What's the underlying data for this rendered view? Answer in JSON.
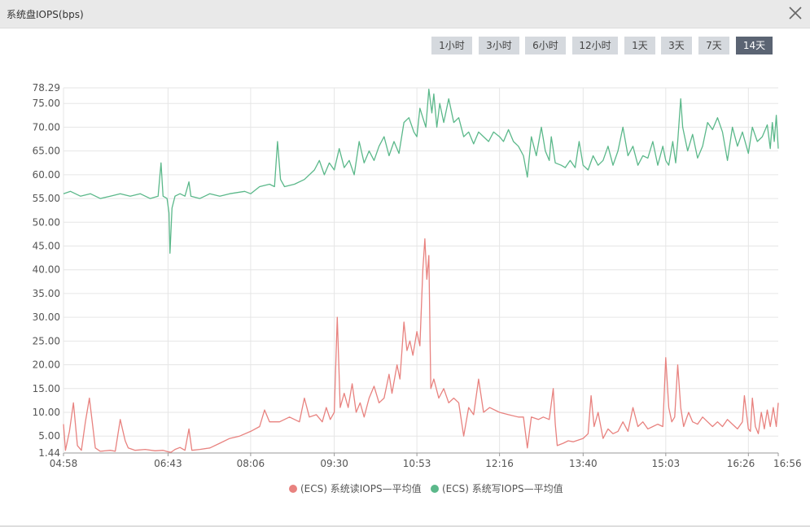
{
  "dialog": {
    "title": "系统盘IOPS(bps)",
    "close_icon": "close-icon"
  },
  "time_ranges": [
    {
      "label": "1小时",
      "active": false
    },
    {
      "label": "3小时",
      "active": false
    },
    {
      "label": "6小时",
      "active": false
    },
    {
      "label": "12小时",
      "active": false
    },
    {
      "label": "1天",
      "active": false
    },
    {
      "label": "3天",
      "active": false
    },
    {
      "label": "7天",
      "active": false
    },
    {
      "label": "14天",
      "active": true
    }
  ],
  "chart_data": {
    "type": "line",
    "title": "",
    "xlabel": "",
    "ylabel": "",
    "grid": true,
    "legend_placement": "bottom-center",
    "ylim": [
      1.44,
      78.29
    ],
    "x_range": [
      "04:58",
      "16:56"
    ],
    "x_tick_labels": [
      "04:58",
      "06:43",
      "08:06",
      "09:30",
      "10:53",
      "12:16",
      "13:40",
      "15:03",
      "16:26",
      "16:56"
    ],
    "y_tick_labels": [
      "1.44",
      "5.00",
      "10.00",
      "15.00",
      "20.00",
      "25.00",
      "30.00",
      "35.00",
      "40.00",
      "45.00",
      "50.00",
      "55.00",
      "60.00",
      "65.00",
      "70.00",
      "75.00",
      "78.29"
    ],
    "series": [
      {
        "name": "(ECS) 系统读IOPS—平均值",
        "color": "#e8827f",
        "points": [
          [
            "04:58",
            7.5
          ],
          [
            "05:00",
            2.0
          ],
          [
            "05:04",
            6.0
          ],
          [
            "05:08",
            12.0
          ],
          [
            "05:12",
            3.0
          ],
          [
            "05:16",
            2.0
          ],
          [
            "05:20",
            8.0
          ],
          [
            "05:24",
            13.0
          ],
          [
            "05:28",
            6.0
          ],
          [
            "05:30",
            2.5
          ],
          [
            "05:35",
            1.8
          ],
          [
            "05:45",
            2.0
          ],
          [
            "05:50",
            1.8
          ],
          [
            "05:55",
            8.5
          ],
          [
            "06:00",
            4.0
          ],
          [
            "06:03",
            2.5
          ],
          [
            "06:10",
            2.0
          ],
          [
            "06:20",
            2.2
          ],
          [
            "06:30",
            1.9
          ],
          [
            "06:38",
            2.0
          ],
          [
            "06:43",
            1.7
          ],
          [
            "06:46",
            1.6
          ],
          [
            "06:50",
            2.2
          ],
          [
            "06:55",
            2.6
          ],
          [
            "07:00",
            2.0
          ],
          [
            "07:04",
            6.5
          ],
          [
            "07:07",
            2.0
          ],
          [
            "07:15",
            2.2
          ],
          [
            "07:25",
            2.5
          ],
          [
            "07:35",
            3.5
          ],
          [
            "07:45",
            4.5
          ],
          [
            "07:55",
            5.0
          ],
          [
            "08:06",
            6.0
          ],
          [
            "08:15",
            7.0
          ],
          [
            "08:20",
            10.5
          ],
          [
            "08:25",
            8.0
          ],
          [
            "08:35",
            8.0
          ],
          [
            "08:45",
            9.0
          ],
          [
            "08:55",
            8.0
          ],
          [
            "09:00",
            13.0
          ],
          [
            "09:05",
            9.0
          ],
          [
            "09:12",
            9.5
          ],
          [
            "09:18",
            8.0
          ],
          [
            "09:22",
            11.0
          ],
          [
            "09:26",
            8.5
          ],
          [
            "09:30",
            10.0
          ],
          [
            "09:33",
            30.0
          ],
          [
            "09:36",
            11.0
          ],
          [
            "09:40",
            14.0
          ],
          [
            "09:44",
            11.0
          ],
          [
            "09:48",
            16.0
          ],
          [
            "09:52",
            10.0
          ],
          [
            "09:56",
            12.0
          ],
          [
            "10:00",
            9.0
          ],
          [
            "10:05",
            13.0
          ],
          [
            "10:10",
            15.5
          ],
          [
            "10:15",
            12.0
          ],
          [
            "10:20",
            13.0
          ],
          [
            "10:25",
            18.0
          ],
          [
            "10:28",
            14.0
          ],
          [
            "10:33",
            20.0
          ],
          [
            "10:36",
            17.0
          ],
          [
            "10:40",
            29.0
          ],
          [
            "10:43",
            23.0
          ],
          [
            "10:46",
            25.0
          ],
          [
            "10:49",
            22.0
          ],
          [
            "10:53",
            27.0
          ],
          [
            "10:56",
            24.0
          ],
          [
            "10:59",
            40.0
          ],
          [
            "11:01",
            46.5
          ],
          [
            "11:03",
            38.0
          ],
          [
            "11:05",
            43.0
          ],
          [
            "11:07",
            15.0
          ],
          [
            "11:10",
            17.0
          ],
          [
            "11:15",
            13.0
          ],
          [
            "11:20",
            15.0
          ],
          [
            "11:25",
            12.0
          ],
          [
            "11:30",
            13.0
          ],
          [
            "11:35",
            12.0
          ],
          [
            "11:40",
            5.0
          ],
          [
            "11:45",
            11.0
          ],
          [
            "11:50",
            9.5
          ],
          [
            "11:55",
            17.0
          ],
          [
            "12:00",
            10.0
          ],
          [
            "12:06",
            11.0
          ],
          [
            "12:16",
            10.0
          ],
          [
            "12:25",
            9.5
          ],
          [
            "12:35",
            9.0
          ],
          [
            "12:40",
            9.0
          ],
          [
            "12:44",
            2.5
          ],
          [
            "12:48",
            9.0
          ],
          [
            "12:55",
            8.5
          ],
          [
            "13:00",
            9.0
          ],
          [
            "13:06",
            8.5
          ],
          [
            "13:10",
            15.0
          ],
          [
            "13:12",
            7.5
          ],
          [
            "13:14",
            3.0
          ],
          [
            "13:20",
            3.5
          ],
          [
            "13:25",
            4.0
          ],
          [
            "13:30",
            3.8
          ],
          [
            "13:40",
            4.5
          ],
          [
            "13:45",
            5.5
          ],
          [
            "13:48",
            13.5
          ],
          [
            "13:51",
            7.0
          ],
          [
            "13:55",
            10.0
          ],
          [
            "14:00",
            4.5
          ],
          [
            "14:05",
            6.5
          ],
          [
            "14:10",
            5.5
          ],
          [
            "14:15",
            6.0
          ],
          [
            "14:20",
            8.0
          ],
          [
            "14:25",
            6.0
          ],
          [
            "14:30",
            11.0
          ],
          [
            "14:35",
            7.0
          ],
          [
            "14:40",
            8.0
          ],
          [
            "14:45",
            6.5
          ],
          [
            "14:50",
            7.0
          ],
          [
            "14:55",
            7.5
          ],
          [
            "15:00",
            7.0
          ],
          [
            "15:03",
            21.5
          ],
          [
            "15:06",
            11.0
          ],
          [
            "15:09",
            8.0
          ],
          [
            "15:12",
            9.0
          ],
          [
            "15:15",
            20.0
          ],
          [
            "15:18",
            11.0
          ],
          [
            "15:21",
            7.0
          ],
          [
            "15:26",
            10.0
          ],
          [
            "15:30",
            8.0
          ],
          [
            "15:35",
            7.5
          ],
          [
            "15:40",
            9.0
          ],
          [
            "15:45",
            8.0
          ],
          [
            "15:50",
            7.0
          ],
          [
            "15:55",
            8.0
          ],
          [
            "16:00",
            7.0
          ],
          [
            "16:05",
            8.5
          ],
          [
            "16:10",
            7.5
          ],
          [
            "16:15",
            6.5
          ],
          [
            "16:20",
            8.0
          ],
          [
            "16:22",
            13.5
          ],
          [
            "16:26",
            6.5
          ],
          [
            "16:28",
            6.0
          ],
          [
            "16:30",
            13.0
          ],
          [
            "16:33",
            7.0
          ],
          [
            "16:36",
            5.5
          ],
          [
            "16:39",
            10.0
          ],
          [
            "16:42",
            6.5
          ],
          [
            "16:45",
            10.5
          ],
          [
            "16:48",
            7.0
          ],
          [
            "16:51",
            11.0
          ],
          [
            "16:54",
            7.0
          ],
          [
            "16:56",
            12.0
          ]
        ]
      },
      {
        "name": "(ECS) 系统写IOPS—平均值",
        "color": "#5bb88a",
        "points": [
          [
            "04:58",
            56.0
          ],
          [
            "05:05",
            56.5
          ],
          [
            "05:15",
            55.5
          ],
          [
            "05:25",
            56.0
          ],
          [
            "05:35",
            55.0
          ],
          [
            "05:45",
            55.5
          ],
          [
            "05:55",
            56.0
          ],
          [
            "06:05",
            55.5
          ],
          [
            "06:15",
            56.0
          ],
          [
            "06:25",
            55.0
          ],
          [
            "06:33",
            55.5
          ],
          [
            "06:36",
            62.5
          ],
          [
            "06:38",
            55.5
          ],
          [
            "06:42",
            55.0
          ],
          [
            "06:44",
            52.0
          ],
          [
            "06:45",
            43.5
          ],
          [
            "06:47",
            53.0
          ],
          [
            "06:50",
            55.5
          ],
          [
            "06:55",
            56.0
          ],
          [
            "07:00",
            55.5
          ],
          [
            "07:04",
            58.5
          ],
          [
            "07:06",
            55.5
          ],
          [
            "07:15",
            55.0
          ],
          [
            "07:25",
            56.0
          ],
          [
            "07:35",
            55.5
          ],
          [
            "07:45",
            56.0
          ],
          [
            "08:00",
            56.5
          ],
          [
            "08:06",
            56.0
          ],
          [
            "08:15",
            57.5
          ],
          [
            "08:25",
            58.0
          ],
          [
            "08:30",
            57.5
          ],
          [
            "08:33",
            67.0
          ],
          [
            "08:36",
            59.0
          ],
          [
            "08:40",
            57.5
          ],
          [
            "08:50",
            58.0
          ],
          [
            "09:00",
            59.0
          ],
          [
            "09:10",
            61.0
          ],
          [
            "09:15",
            63.0
          ],
          [
            "09:20",
            60.0
          ],
          [
            "09:25",
            62.5
          ],
          [
            "09:30",
            61.0
          ],
          [
            "09:35",
            65.5
          ],
          [
            "09:40",
            61.5
          ],
          [
            "09:45",
            63.0
          ],
          [
            "09:50",
            60.0
          ],
          [
            "09:55",
            67.0
          ],
          [
            "10:00",
            62.5
          ],
          [
            "10:05",
            65.0
          ],
          [
            "10:10",
            63.0
          ],
          [
            "10:15",
            66.0
          ],
          [
            "10:20",
            68.0
          ],
          [
            "10:25",
            64.0
          ],
          [
            "10:30",
            67.0
          ],
          [
            "10:35",
            64.5
          ],
          [
            "10:40",
            71.0
          ],
          [
            "10:45",
            72.0
          ],
          [
            "10:50",
            69.0
          ],
          [
            "10:53",
            68.0
          ],
          [
            "10:56",
            74.0
          ],
          [
            "10:59",
            72.0
          ],
          [
            "11:02",
            70.0
          ],
          [
            "11:05",
            78.0
          ],
          [
            "11:08",
            73.0
          ],
          [
            "11:10",
            77.0
          ],
          [
            "11:13",
            70.0
          ],
          [
            "11:16",
            75.0
          ],
          [
            "11:20",
            71.0
          ],
          [
            "11:25",
            76.0
          ],
          [
            "11:30",
            71.0
          ],
          [
            "11:35",
            72.0
          ],
          [
            "11:40",
            68.0
          ],
          [
            "11:45",
            69.0
          ],
          [
            "11:50",
            66.5
          ],
          [
            "11:55",
            69.0
          ],
          [
            "12:00",
            68.0
          ],
          [
            "12:05",
            67.0
          ],
          [
            "12:10",
            69.0
          ],
          [
            "12:16",
            68.0
          ],
          [
            "12:20",
            67.0
          ],
          [
            "12:25",
            69.5
          ],
          [
            "12:30",
            67.0
          ],
          [
            "12:35",
            66.0
          ],
          [
            "12:40",
            64.0
          ],
          [
            "12:44",
            59.5
          ],
          [
            "12:48",
            68.0
          ],
          [
            "12:53",
            64.0
          ],
          [
            "12:58",
            70.0
          ],
          [
            "13:02",
            65.0
          ],
          [
            "13:06",
            63.0
          ],
          [
            "13:08",
            68.0
          ],
          [
            "13:12",
            62.5
          ],
          [
            "13:18",
            62.0
          ],
          [
            "13:22",
            61.5
          ],
          [
            "13:27",
            63.0
          ],
          [
            "13:32",
            61.5
          ],
          [
            "13:36",
            67.0
          ],
          [
            "13:40",
            62.0
          ],
          [
            "13:45",
            61.0
          ],
          [
            "13:50",
            64.0
          ],
          [
            "13:55",
            62.0
          ],
          [
            "14:00",
            63.0
          ],
          [
            "14:05",
            66.0
          ],
          [
            "14:10",
            62.0
          ],
          [
            "14:15",
            65.0
          ],
          [
            "14:20",
            70.0
          ],
          [
            "14:25",
            64.0
          ],
          [
            "14:30",
            66.0
          ],
          [
            "14:35",
            62.0
          ],
          [
            "14:40",
            64.0
          ],
          [
            "14:45",
            63.5
          ],
          [
            "14:50",
            67.0
          ],
          [
            "14:55",
            62.0
          ],
          [
            "15:00",
            66.0
          ],
          [
            "15:03",
            63.0
          ],
          [
            "15:06",
            62.0
          ],
          [
            "15:10",
            67.0
          ],
          [
            "15:13",
            62.5
          ],
          [
            "15:15",
            67.0
          ],
          [
            "15:18",
            76.0
          ],
          [
            "15:20",
            70.0
          ],
          [
            "15:25",
            65.0
          ],
          [
            "15:30",
            68.5
          ],
          [
            "15:35",
            63.5
          ],
          [
            "15:40",
            66.0
          ],
          [
            "15:45",
            71.0
          ],
          [
            "15:50",
            69.5
          ],
          [
            "15:55",
            72.0
          ],
          [
            "16:00",
            69.0
          ],
          [
            "16:05",
            63.0
          ],
          [
            "16:10",
            70.0
          ],
          [
            "16:15",
            66.0
          ],
          [
            "16:20",
            69.0
          ],
          [
            "16:26",
            64.5
          ],
          [
            "16:30",
            70.0
          ],
          [
            "16:35",
            67.0
          ],
          [
            "16:40",
            68.0
          ],
          [
            "16:45",
            70.5
          ],
          [
            "16:48",
            65.5
          ],
          [
            "16:50",
            71.0
          ],
          [
            "16:52",
            67.0
          ],
          [
            "16:54",
            72.5
          ],
          [
            "16:56",
            65.5
          ]
        ]
      }
    ]
  }
}
